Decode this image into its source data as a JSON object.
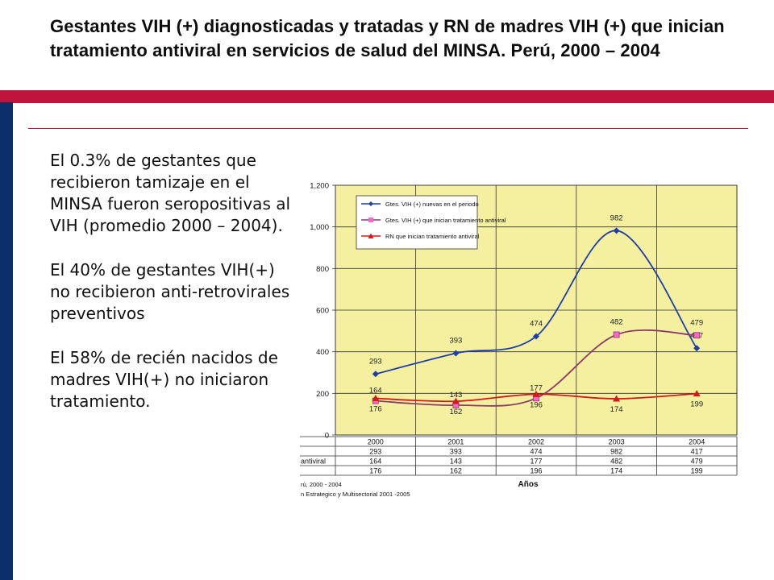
{
  "slide": {
    "title": "Gestantes VIH (+) diagnosticadas y tratadas  y RN de madres VIH (+) que inician tratamiento antiviral en servicios de salud del MINSA. Perú, 2000 – 2004",
    "bullets": [
      "El 0.3% de gestantes que recibieron tamizaje en el MINSA fueron seropositivas al VIH (promedio 2000 – 2004).",
      "El 40% de  gestantes VIH(+) no recibieron anti-retrovirales preventivos",
      "El 58% de recién nacidos de madres VIH(+) no iniciaron tratamiento."
    ],
    "colors": {
      "left_bar": "#0a2f6b",
      "band": "#c0143c",
      "plot_bg": "#f5f0a0"
    }
  },
  "chart_data": {
    "type": "line",
    "categories": [
      "2000",
      "2001",
      "2002",
      "2003",
      "2004"
    ],
    "series": [
      {
        "name": "Gtes. VIH (+) nuevas en el periodo",
        "values": [
          293,
          393,
          474,
          982,
          417
        ],
        "color": "#1f3ea8",
        "marker": "diamond"
      },
      {
        "name": "Gtes. VIH (+) que inician tratamiento antiviral",
        "values": [
          164,
          143,
          177,
          482,
          479
        ],
        "color": "#8a3b6a",
        "marker": "square"
      },
      {
        "name": "RN que inician tratamiento antiviral",
        "values": [
          176,
          162,
          196,
          174,
          199
        ],
        "color": "#d11a1a",
        "marker": "triangle"
      }
    ],
    "ylim": [
      0,
      1200
    ],
    "yticks": [
      "0",
      "200",
      "400",
      "600",
      "800",
      "1,000",
      "1,200"
    ],
    "data_labels": [
      [
        "293",
        "393",
        "474",
        "982",
        "417"
      ],
      [
        "164",
        "143",
        "177",
        "482",
        "479"
      ],
      [
        "176",
        "162",
        "196",
        "174",
        "199"
      ]
    ],
    "table_row_label_fragment": "antiviral",
    "xlabel": "Años",
    "source_lines": [
      "rú, 2000 - 2004",
      "n Estrategico y Multisectorial 2001 -2005"
    ],
    "grid": true,
    "legend_position": "top-left"
  }
}
